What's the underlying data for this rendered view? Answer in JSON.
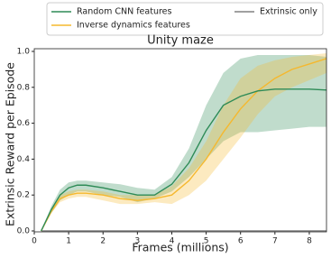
{
  "chart_data": {
    "type": "line",
    "title": "Unity maze",
    "x_label": "Frames (millions)",
    "y_label": "Extrinsic Reward per Episode",
    "x": [
      0.2,
      0.5,
      0.75,
      1,
      1.25,
      1.5,
      2,
      2.5,
      3,
      3.5,
      4,
      4.5,
      5,
      5.5,
      6,
      6.5,
      7,
      7.5,
      8,
      8.5
    ],
    "series": [
      {
        "name": "Random CNN features",
        "color": "#2e8b57",
        "values": [
          0,
          0.12,
          0.2,
          0.24,
          0.255,
          0.255,
          0.24,
          0.22,
          0.2,
          0.2,
          0.26,
          0.38,
          0.56,
          0.7,
          0.75,
          0.78,
          0.79,
          0.79,
          0.79,
          0.785
        ],
        "lower": [
          0,
          0.1,
          0.17,
          0.2,
          0.22,
          0.22,
          0.2,
          0.19,
          0.16,
          0.18,
          0.22,
          0.3,
          0.4,
          0.5,
          0.55,
          0.55,
          0.56,
          0.57,
          0.58,
          0.58
        ],
        "upper": [
          0,
          0.14,
          0.23,
          0.27,
          0.28,
          0.28,
          0.27,
          0.26,
          0.24,
          0.23,
          0.3,
          0.46,
          0.7,
          0.88,
          0.96,
          0.98,
          0.98,
          0.98,
          0.98,
          0.97
        ]
      },
      {
        "name": "Inverse dynamics features",
        "color": "#f5b82e",
        "values": [
          0,
          0.11,
          0.18,
          0.2,
          0.21,
          0.21,
          0.2,
          0.18,
          0.17,
          0.18,
          0.2,
          0.28,
          0.4,
          0.55,
          0.68,
          0.78,
          0.85,
          0.9,
          0.93,
          0.96
        ],
        "lower": [
          0,
          0.1,
          0.16,
          0.18,
          0.19,
          0.19,
          0.17,
          0.15,
          0.15,
          0.16,
          0.15,
          0.2,
          0.28,
          0.4,
          0.52,
          0.65,
          0.75,
          0.8,
          0.84,
          0.88
        ],
        "upper": [
          0,
          0.12,
          0.2,
          0.22,
          0.23,
          0.23,
          0.22,
          0.2,
          0.2,
          0.2,
          0.25,
          0.35,
          0.5,
          0.7,
          0.85,
          0.92,
          0.95,
          0.97,
          0.98,
          0.99
        ]
      },
      {
        "name": "Extrinsic only",
        "color": "#808080",
        "values": [
          0,
          0,
          0,
          0,
          0,
          0,
          0,
          0,
          0,
          0,
          0,
          0,
          0,
          0,
          0,
          0,
          0,
          0,
          0,
          0
        ]
      }
    ],
    "xlim": [
      0,
      8.5
    ],
    "ylim": [
      -0.005,
      1.015
    ],
    "xticks": [
      0,
      1,
      2,
      3,
      4,
      5,
      6,
      7,
      8
    ],
    "yticks": [
      {
        "value": 0,
        "label": "0.0"
      },
      {
        "value": 0.2,
        "label": "0.2"
      },
      {
        "value": 0.4,
        "label": "0.4"
      },
      {
        "value": 0.6,
        "label": "0.6"
      },
      {
        "value": 0.8,
        "label": "0.8"
      },
      {
        "value": 1,
        "label": "1.0"
      }
    ]
  }
}
